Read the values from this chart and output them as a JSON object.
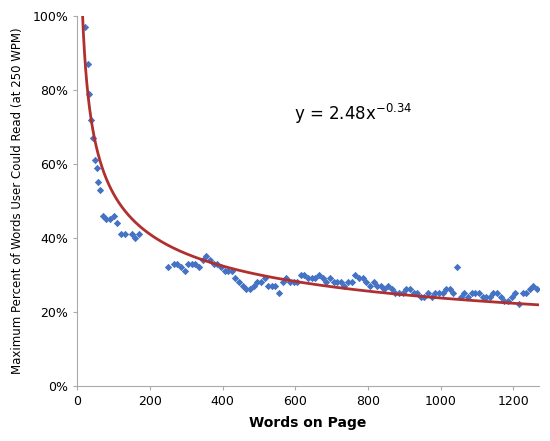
{
  "title": "",
  "xlabel": "Words on Page",
  "ylabel": "Maximum Percent of Words User Could Read (at 250 WPM)",
  "xlim": [
    0,
    1270
  ],
  "ylim": [
    0,
    1.0
  ],
  "yticks": [
    0.0,
    0.2,
    0.4,
    0.6,
    0.8,
    1.0
  ],
  "xticks": [
    0,
    200,
    400,
    600,
    800,
    1000,
    1200
  ],
  "curve_color": "#b03030",
  "scatter_color": "#4472C4",
  "scatter_points": [
    [
      20,
      0.97
    ],
    [
      28,
      0.87
    ],
    [
      33,
      0.79
    ],
    [
      38,
      0.72
    ],
    [
      42,
      0.67
    ],
    [
      48,
      0.61
    ],
    [
      53,
      0.59
    ],
    [
      58,
      0.55
    ],
    [
      63,
      0.53
    ],
    [
      70,
      0.46
    ],
    [
      80,
      0.45
    ],
    [
      90,
      0.45
    ],
    [
      100,
      0.46
    ],
    [
      110,
      0.44
    ],
    [
      120,
      0.41
    ],
    [
      130,
      0.41
    ],
    [
      150,
      0.41
    ],
    [
      160,
      0.4
    ],
    [
      170,
      0.41
    ],
    [
      250,
      0.32
    ],
    [
      265,
      0.33
    ],
    [
      275,
      0.33
    ],
    [
      285,
      0.32
    ],
    [
      295,
      0.31
    ],
    [
      305,
      0.33
    ],
    [
      315,
      0.33
    ],
    [
      325,
      0.33
    ],
    [
      335,
      0.32
    ],
    [
      345,
      0.34
    ],
    [
      355,
      0.35
    ],
    [
      365,
      0.34
    ],
    [
      375,
      0.33
    ],
    [
      385,
      0.33
    ],
    [
      395,
      0.32
    ],
    [
      405,
      0.31
    ],
    [
      415,
      0.31
    ],
    [
      425,
      0.31
    ],
    [
      435,
      0.29
    ],
    [
      445,
      0.28
    ],
    [
      455,
      0.27
    ],
    [
      465,
      0.26
    ],
    [
      475,
      0.26
    ],
    [
      485,
      0.27
    ],
    [
      495,
      0.28
    ],
    [
      505,
      0.28
    ],
    [
      515,
      0.29
    ],
    [
      525,
      0.27
    ],
    [
      535,
      0.27
    ],
    [
      545,
      0.27
    ],
    [
      555,
      0.25
    ],
    [
      565,
      0.28
    ],
    [
      575,
      0.29
    ],
    [
      585,
      0.28
    ],
    [
      595,
      0.28
    ],
    [
      605,
      0.28
    ],
    [
      615,
      0.3
    ],
    [
      625,
      0.3
    ],
    [
      635,
      0.29
    ],
    [
      645,
      0.29
    ],
    [
      655,
      0.29
    ],
    [
      665,
      0.3
    ],
    [
      675,
      0.29
    ],
    [
      685,
      0.28
    ],
    [
      695,
      0.29
    ],
    [
      705,
      0.28
    ],
    [
      715,
      0.28
    ],
    [
      725,
      0.28
    ],
    [
      735,
      0.27
    ],
    [
      745,
      0.28
    ],
    [
      755,
      0.28
    ],
    [
      765,
      0.3
    ],
    [
      775,
      0.29
    ],
    [
      785,
      0.29
    ],
    [
      795,
      0.28
    ],
    [
      805,
      0.27
    ],
    [
      815,
      0.28
    ],
    [
      825,
      0.27
    ],
    [
      835,
      0.27
    ],
    [
      845,
      0.26
    ],
    [
      855,
      0.27
    ],
    [
      865,
      0.26
    ],
    [
      875,
      0.25
    ],
    [
      885,
      0.25
    ],
    [
      895,
      0.25
    ],
    [
      905,
      0.26
    ],
    [
      915,
      0.26
    ],
    [
      925,
      0.25
    ],
    [
      935,
      0.25
    ],
    [
      945,
      0.24
    ],
    [
      955,
      0.24
    ],
    [
      965,
      0.25
    ],
    [
      975,
      0.24
    ],
    [
      985,
      0.25
    ],
    [
      995,
      0.25
    ],
    [
      1005,
      0.25
    ],
    [
      1015,
      0.26
    ],
    [
      1025,
      0.26
    ],
    [
      1035,
      0.25
    ],
    [
      1045,
      0.32
    ],
    [
      1055,
      0.24
    ],
    [
      1065,
      0.25
    ],
    [
      1075,
      0.24
    ],
    [
      1085,
      0.25
    ],
    [
      1095,
      0.25
    ],
    [
      1105,
      0.25
    ],
    [
      1115,
      0.24
    ],
    [
      1125,
      0.24
    ],
    [
      1135,
      0.24
    ],
    [
      1145,
      0.25
    ],
    [
      1155,
      0.25
    ],
    [
      1165,
      0.24
    ],
    [
      1175,
      0.23
    ],
    [
      1185,
      0.23
    ],
    [
      1195,
      0.24
    ],
    [
      1205,
      0.25
    ],
    [
      1215,
      0.22
    ],
    [
      1225,
      0.25
    ],
    [
      1235,
      0.25
    ],
    [
      1245,
      0.26
    ],
    [
      1255,
      0.27
    ],
    [
      1265,
      0.26
    ]
  ],
  "a": 2.48,
  "b": -0.34,
  "background_color": "#ffffff"
}
